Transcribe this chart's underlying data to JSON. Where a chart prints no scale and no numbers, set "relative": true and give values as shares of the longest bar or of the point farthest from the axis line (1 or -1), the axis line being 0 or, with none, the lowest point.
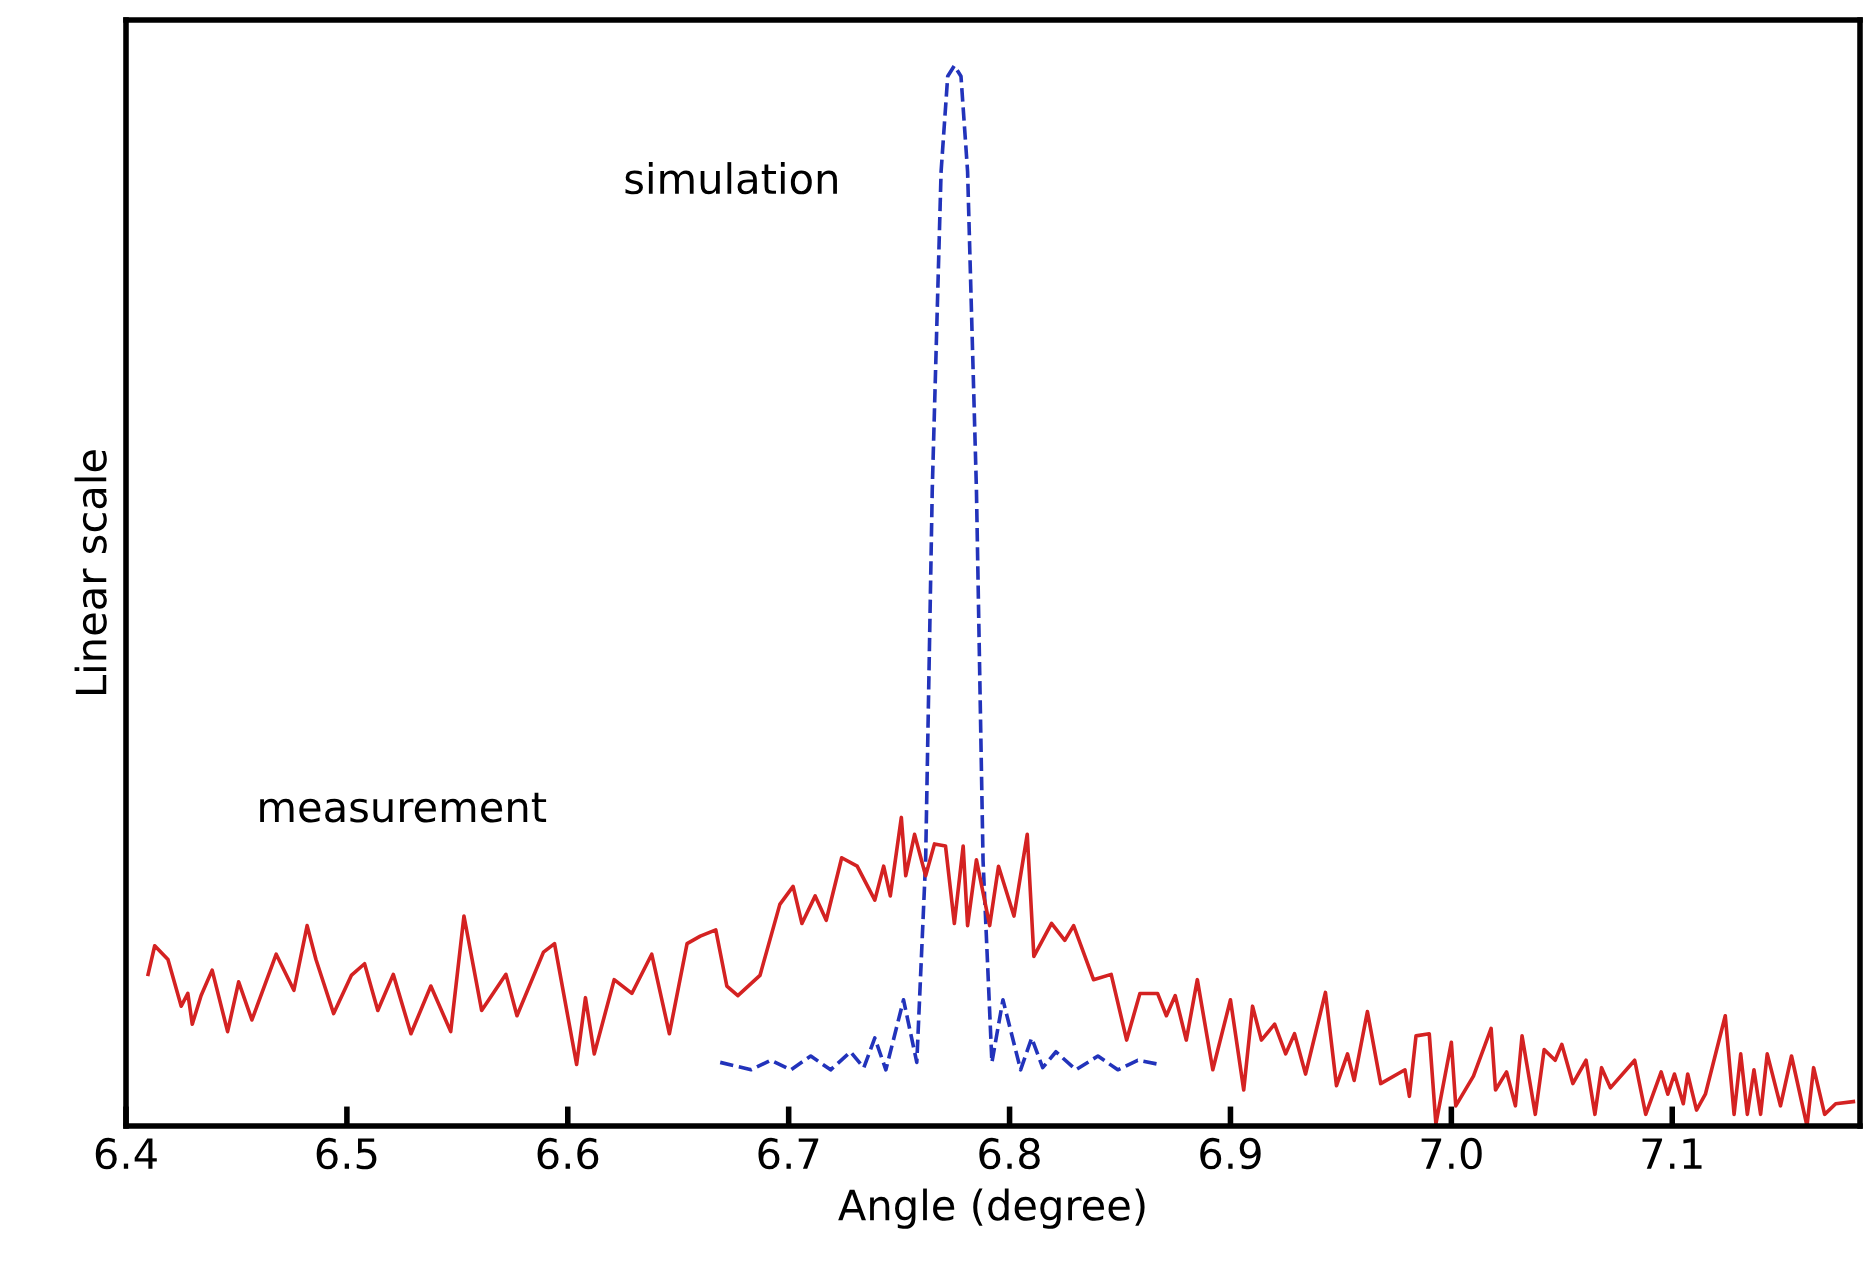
{
  "chart_data": {
    "type": "line",
    "relative": true,
    "xlabel": "Angle (degree)",
    "ylabel": "Linear scale",
    "xlim": [
      6.4,
      7.185
    ],
    "xticks": [
      6.4,
      6.5,
      6.6,
      6.7,
      6.8,
      6.9,
      {
        "value": 7,
        "label": "7.0"
      },
      7.1
    ],
    "grid": false,
    "legend": false,
    "series": [
      {
        "name": "simulation",
        "color": "#2233bb",
        "line_style": "dashed",
        "x": [
          6.669,
          6.683,
          6.692,
          6.701,
          6.71,
          6.719,
          6.728,
          6.734,
          6.739,
          6.744,
          6.752,
          6.758,
          6.762,
          6.765,
          6.769,
          6.772,
          6.775,
          6.778,
          6.781,
          6.785,
          6.788,
          6.792,
          6.797,
          6.805,
          6.81,
          6.815,
          6.821,
          6.83,
          6.84,
          6.849,
          6.858,
          6.868
        ],
        "values": [
          0.06,
          0.053,
          0.062,
          0.053,
          0.066,
          0.053,
          0.07,
          0.055,
          0.083,
          0.053,
          0.119,
          0.06,
          0.25,
          0.6,
          0.9,
          0.99,
          1,
          0.99,
          0.9,
          0.6,
          0.25,
          0.06,
          0.119,
          0.053,
          0.083,
          0.055,
          0.07,
          0.053,
          0.066,
          0.053,
          0.062,
          0.058
        ]
      },
      {
        "name": "measurement",
        "color": "#d42222",
        "line_style": "solid",
        "x": [
          6.41,
          6.413,
          6.419,
          6.425,
          6.428,
          6.43,
          6.434,
          6.439,
          6.446,
          6.451,
          6.457,
          6.468,
          6.476,
          6.482,
          6.486,
          6.494,
          6.502,
          6.508,
          6.514,
          6.521,
          6.529,
          6.538,
          6.547,
          6.553,
          6.561,
          6.572,
          6.577,
          6.589,
          6.594,
          6.604,
          6.608,
          6.612,
          6.621,
          6.629,
          6.638,
          6.646,
          6.654,
          6.66,
          6.667,
          6.672,
          6.677,
          6.687,
          6.696,
          6.702,
          6.706,
          6.712,
          6.717,
          6.724,
          6.731,
          6.739,
          6.743,
          6.746,
          6.751,
          6.753,
          6.757,
          6.762,
          6.766,
          6.771,
          6.775,
          6.779,
          6.781,
          6.785,
          6.791,
          6.795,
          6.802,
          6.808,
          6.811,
          6.819,
          6.825,
          6.829,
          6.838,
          6.846,
          6.853,
          6.859,
          6.867,
          6.871,
          6.875,
          6.88,
          6.885,
          6.892,
          6.9,
          6.906,
          6.91,
          6.914,
          6.92,
          6.925,
          6.929,
          6.934,
          6.943,
          6.948,
          6.953,
          6.956,
          6.962,
          6.968,
          6.979,
          6.981,
          6.984,
          6.99,
          6.993,
          7.0,
          7.002,
          7.01,
          7.018,
          7.02,
          7.025,
          7.029,
          7.032,
          7.038,
          7.042,
          7.047,
          7.05,
          7.055,
          7.061,
          7.065,
          7.068,
          7.072,
          7.083,
          7.088,
          7.095,
          7.098,
          7.101,
          7.105,
          7.107,
          7.111,
          7.115,
          7.124,
          7.128,
          7.131,
          7.134,
          7.137,
          7.14,
          7.143,
          7.149,
          7.154,
          7.161,
          7.164,
          7.169,
          7.174,
          7.182
        ],
        "values": [
          0.143,
          0.17,
          0.157,
          0.113,
          0.125,
          0.096,
          0.123,
          0.147,
          0.089,
          0.136,
          0.1,
          0.162,
          0.128,
          0.189,
          0.157,
          0.106,
          0.142,
          0.153,
          0.109,
          0.143,
          0.087,
          0.132,
          0.089,
          0.198,
          0.109,
          0.143,
          0.104,
          0.164,
          0.172,
          0.058,
          0.121,
          0.068,
          0.138,
          0.125,
          0.162,
          0.087,
          0.172,
          0.179,
          0.185,
          0.132,
          0.123,
          0.142,
          0.209,
          0.226,
          0.191,
          0.217,
          0.194,
          0.253,
          0.245,
          0.213,
          0.245,
          0.217,
          0.291,
          0.236,
          0.275,
          0.236,
          0.266,
          0.264,
          0.191,
          0.264,
          0.189,
          0.251,
          0.189,
          0.245,
          0.198,
          0.275,
          0.16,
          0.191,
          0.175,
          0.189,
          0.138,
          0.143,
          0.081,
          0.125,
          0.125,
          0.104,
          0.123,
          0.081,
          0.138,
          0.053,
          0.119,
          0.034,
          0.113,
          0.081,
          0.096,
          0.068,
          0.087,
          0.049,
          0.126,
          0.038,
          0.068,
          0.043,
          0.108,
          0.04,
          0.053,
          0.028,
          0.085,
          0.087,
          0.002,
          0.079,
          0.019,
          0.047,
          0.092,
          0.034,
          0.051,
          0.019,
          0.085,
          0.011,
          0.072,
          0.062,
          0.077,
          0.04,
          0.062,
          0.011,
          0.055,
          0.036,
          0.062,
          0.011,
          0.051,
          0.03,
          0.049,
          0.021,
          0.049,
          0.015,
          0.03,
          0.104,
          0.011,
          0.068,
          0.011,
          0.053,
          0.011,
          0.068,
          0.019,
          0.066,
          0.0,
          0.055,
          0.011,
          0.021,
          0.023
        ]
      }
    ]
  }
}
